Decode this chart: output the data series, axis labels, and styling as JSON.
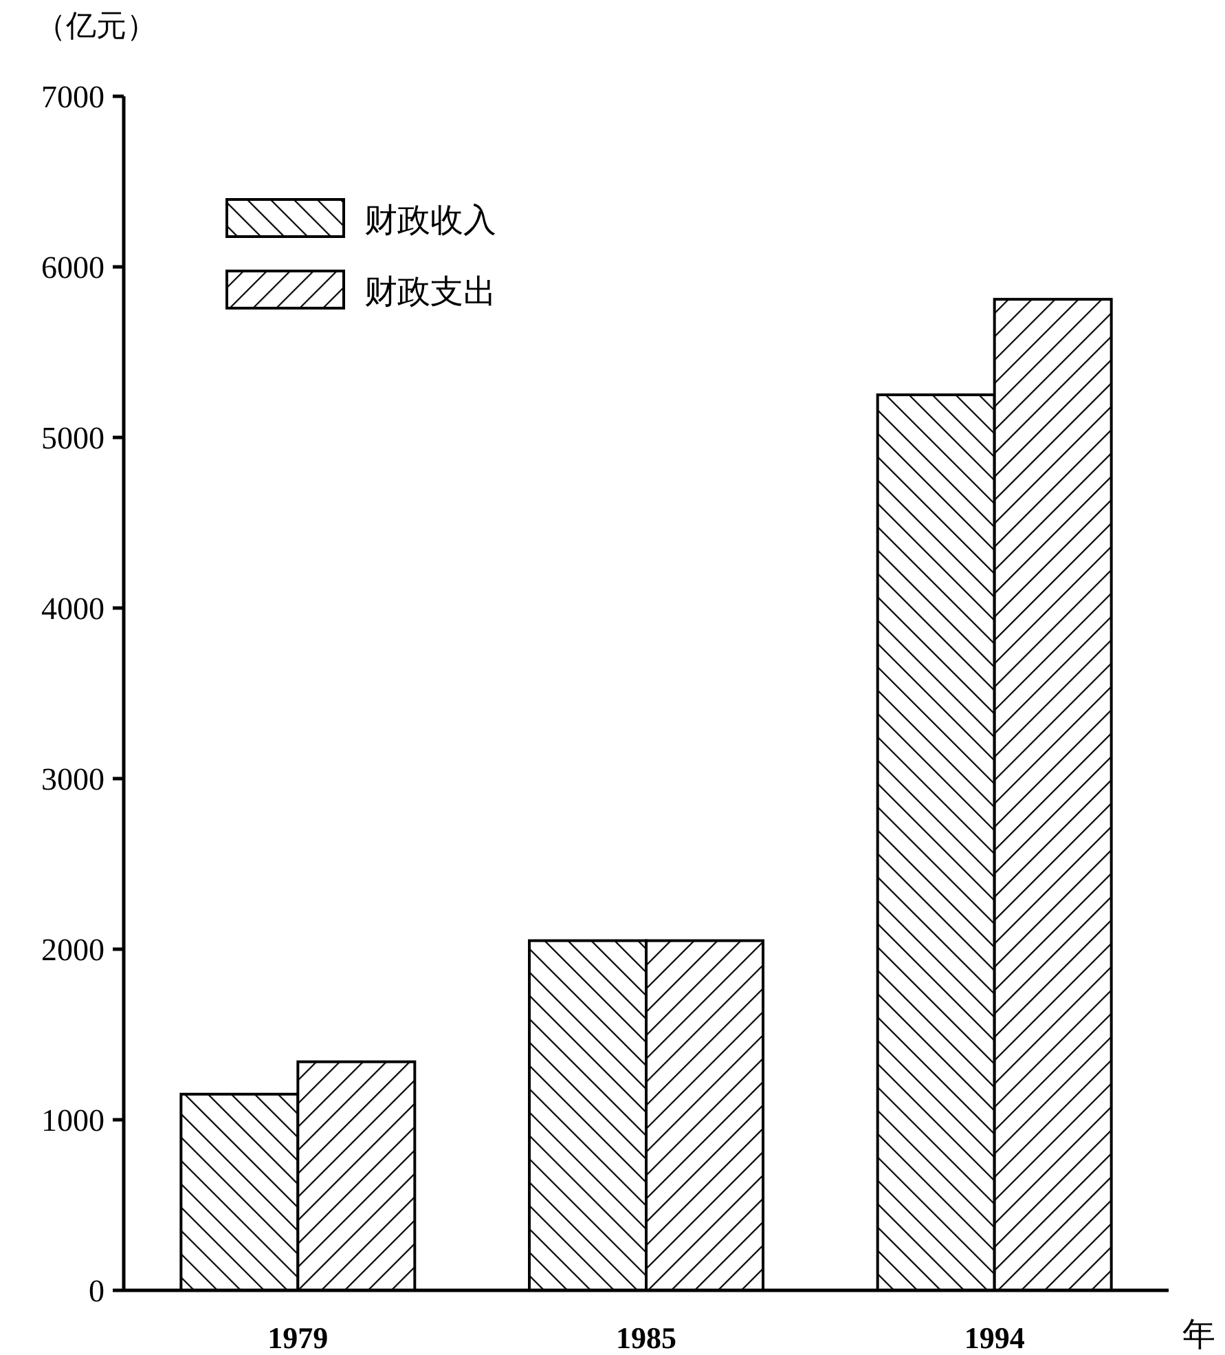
{
  "chart_data": {
    "type": "bar",
    "ylabel": "（亿元）",
    "xlabel": "年",
    "categories": [
      "1979",
      "1985",
      "1994"
    ],
    "series": [
      {
        "name": "财政收入",
        "color": "#000000",
        "values": [
          1150,
          2050,
          5250
        ]
      },
      {
        "name": "财政支出",
        "color": "#000000",
        "values": [
          1340,
          2050,
          5810
        ]
      }
    ],
    "ylim": [
      0,
      7000
    ],
    "yticks": [
      0,
      1000,
      2000,
      3000,
      4000,
      5000,
      6000,
      7000
    ],
    "legend": "top left"
  }
}
